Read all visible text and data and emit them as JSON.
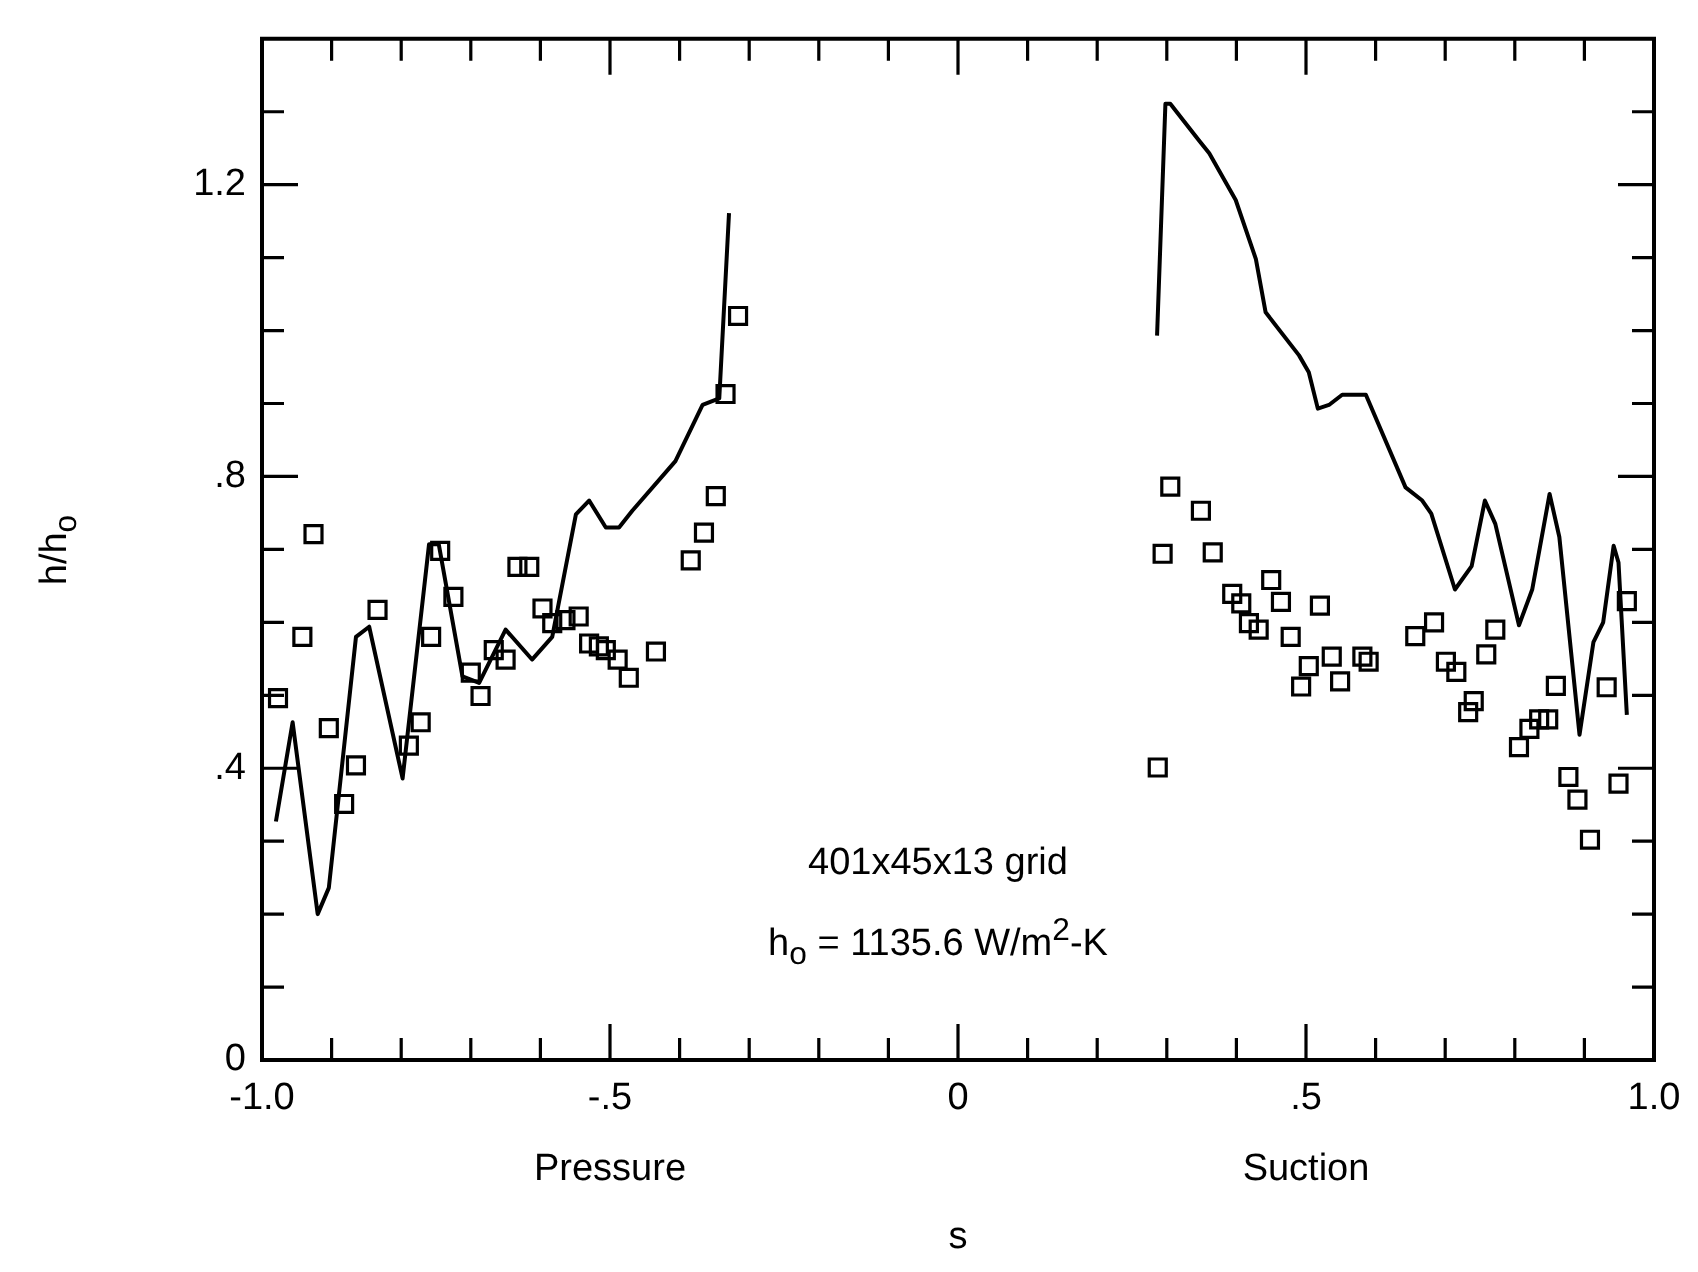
{
  "chart_data": {
    "type": "line",
    "xlabel": "s",
    "ylabel": "h/h$_{o}$",
    "annotations": [
      "401x45x13 grid",
      "h$_{o}$ = 1135.6 W/m$^{2}$-K",
      "Pressure",
      "Suction"
    ],
    "xlim": [
      -1,
      1
    ],
    "ylim": [
      0,
      1.4
    ],
    "xticks": [
      {
        "value": -1,
        "label": "-1.0"
      },
      {
        "value": -0.9,
        "label": null
      },
      {
        "value": -0.8,
        "label": null
      },
      {
        "value": -0.7,
        "label": null
      },
      {
        "value": -0.6,
        "label": null
      },
      {
        "value": -0.5,
        "label": "-.5"
      },
      {
        "value": -0.4,
        "label": null
      },
      {
        "value": -0.3,
        "label": null
      },
      {
        "value": -0.2,
        "label": null
      },
      {
        "value": -0.1,
        "label": null
      },
      0,
      {
        "value": 0.1,
        "label": null
      },
      {
        "value": 0.2,
        "label": null
      },
      {
        "value": 0.3,
        "label": null
      },
      {
        "value": 0.4,
        "label": null
      },
      {
        "value": 0.5,
        "label": ".5"
      },
      {
        "value": 0.6,
        "label": null
      },
      {
        "value": 0.7,
        "label": null
      },
      {
        "value": 0.8,
        "label": null
      },
      {
        "value": 0.9,
        "label": null
      },
      {
        "value": 1,
        "label": "1.0"
      }
    ],
    "yticks": [
      0,
      {
        "value": 0.1,
        "label": null
      },
      {
        "value": 0.2,
        "label": null
      },
      {
        "value": 0.3,
        "label": null
      },
      {
        "value": 0.4,
        "label": ".4"
      },
      {
        "value": 0.5,
        "label": null
      },
      {
        "value": 0.6,
        "label": null
      },
      {
        "value": 0.7,
        "label": null
      },
      {
        "value": 0.8,
        "label": ".8"
      },
      {
        "value": 0.9,
        "label": null
      },
      {
        "value": 1,
        "label": null
      },
      {
        "value": 1.1,
        "label": null
      },
      {
        "value": 1.2,
        "label": "1.2"
      },
      {
        "value": 1.3,
        "label": null
      }
    ],
    "series": [
      {
        "type": "line",
        "color": "#000000",
        "marker": "none",
        "x": [
          -0.98,
          -0.956,
          -0.92,
          -0.904,
          -0.865,
          -0.846,
          -0.798,
          -0.76,
          -0.746,
          -0.712,
          -0.688,
          -0.65,
          -0.612,
          -0.583,
          -0.549,
          -0.53,
          -0.506,
          -0.487,
          -0.468,
          -0.406,
          -0.367,
          -0.343,
          -0.329
        ],
        "values": [
          0.327,
          0.463,
          0.2,
          0.236,
          0.58,
          0.594,
          0.386,
          0.707,
          0.707,
          0.526,
          0.517,
          0.59,
          0.549,
          0.58,
          0.748,
          0.767,
          0.73,
          0.73,
          0.753,
          0.821,
          0.898,
          0.907,
          1.161
        ]
      },
      {
        "type": "line",
        "color": "#000000",
        "marker": "none",
        "x": [
          0.286,
          0.298,
          0.305,
          0.346,
          0.361,
          0.399,
          0.428,
          0.442,
          0.49,
          0.504,
          0.517,
          0.533,
          0.552,
          0.586,
          0.643,
          0.667,
          0.68,
          0.714,
          0.738,
          0.757,
          0.772,
          0.806,
          0.825,
          0.85,
          0.864,
          0.893,
          0.913,
          0.927,
          0.942,
          0.949,
          0.961
        ],
        "values": [
          0.993,
          1.311,
          1.311,
          1.261,
          1.243,
          1.179,
          1.098,
          1.025,
          0.966,
          0.943,
          0.893,
          0.898,
          0.912,
          0.912,
          0.785,
          0.767,
          0.749,
          0.645,
          0.677,
          0.767,
          0.735,
          0.596,
          0.645,
          0.776,
          0.717,
          0.446,
          0.573,
          0.6,
          0.705,
          0.682,
          0.473
        ]
      },
      {
        "type": "scatter",
        "color": "#000000",
        "marker": "square",
        "x": [
          -0.977,
          -0.942,
          -0.926,
          -0.904,
          -0.882,
          -0.865,
          -0.834,
          -0.789,
          -0.772,
          -0.757,
          -0.744,
          -0.725,
          -0.7,
          -0.686,
          -0.667,
          -0.65,
          -0.633,
          -0.616,
          -0.597,
          -0.583,
          -0.564,
          -0.545,
          -0.53,
          -0.516,
          -0.506,
          -0.489,
          -0.473,
          -0.434,
          -0.384,
          -0.365,
          -0.348,
          -0.334,
          -0.316,
          0.287,
          0.305,
          0.294,
          0.349,
          0.366,
          0.394,
          0.407,
          0.418,
          0.432,
          0.45,
          0.464,
          0.478,
          0.52,
          0.504,
          0.493,
          0.537,
          0.549,
          0.581,
          0.59,
          0.657,
          0.684,
          0.701,
          0.716,
          0.733,
          0.741,
          0.759,
          0.772,
          0.806,
          0.821,
          0.835,
          0.848,
          0.859,
          0.877,
          0.89,
          0.908,
          0.932,
          0.949,
          0.961
        ],
        "values": [
          0.496,
          0.58,
          0.721,
          0.455,
          0.351,
          0.404,
          0.617,
          0.431,
          0.463,
          0.58,
          0.698,
          0.635,
          0.531,
          0.499,
          0.562,
          0.549,
          0.676,
          0.676,
          0.619,
          0.599,
          0.603,
          0.608,
          0.571,
          0.567,
          0.562,
          0.549,
          0.524,
          0.56,
          0.685,
          0.723,
          0.773,
          0.913,
          1.02,
          0.401,
          0.786,
          0.694,
          0.753,
          0.696,
          0.639,
          0.626,
          0.599,
          0.59,
          0.658,
          0.628,
          0.58,
          0.623,
          0.54,
          0.512,
          0.553,
          0.519,
          0.553,
          0.546,
          0.581,
          0.6,
          0.546,
          0.532,
          0.477,
          0.492,
          0.556,
          0.59,
          0.429,
          0.454,
          0.467,
          0.467,
          0.513,
          0.388,
          0.357,
          0.302,
          0.511,
          0.379,
          0.629
        ]
      }
    ]
  }
}
